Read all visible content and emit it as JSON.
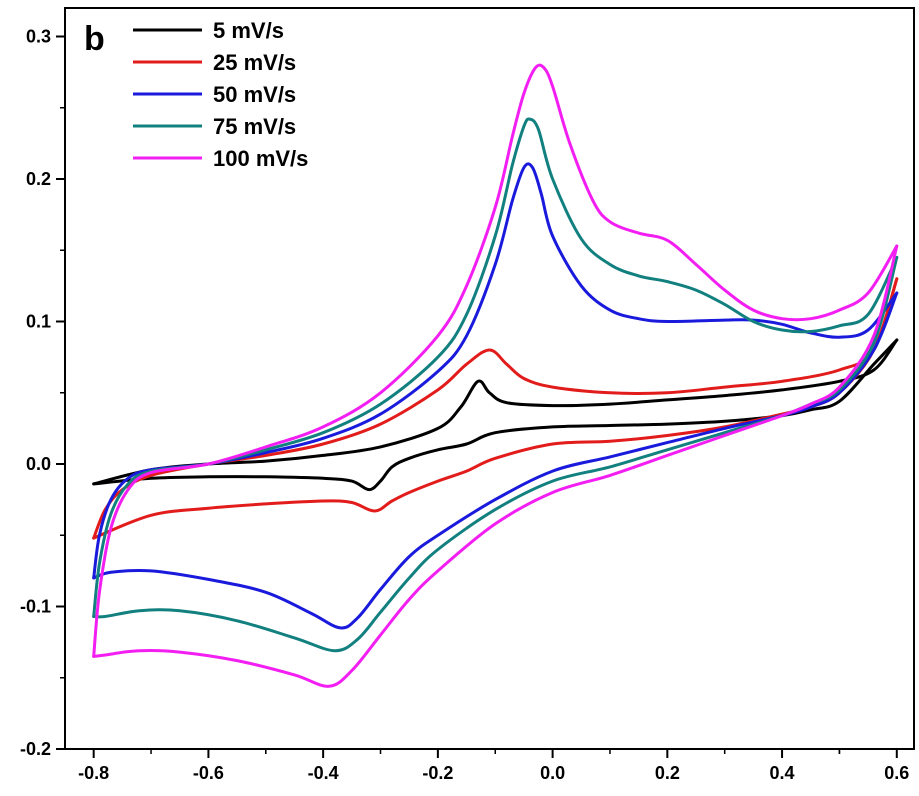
{
  "panel_label": "b",
  "colors": {
    "s5": "#000000",
    "s25": "#e21b1b",
    "s50": "#1a1adc",
    "s75": "#138080",
    "s100": "#f21ef2"
  },
  "chart_data": {
    "type": "line",
    "title": "",
    "xlabel": "",
    "ylabel": "",
    "xlim": [
      -0.85,
      0.63
    ],
    "ylim": [
      -0.2,
      0.32
    ],
    "xticks": [
      -0.8,
      -0.6,
      -0.4,
      -0.2,
      0.0,
      0.2,
      0.4,
      0.6
    ],
    "xtick_labels": [
      "-0.8",
      "-0.6",
      "-0.4",
      "-0.2",
      "0.0",
      "0.2",
      "0.4",
      "0.6"
    ],
    "yticks": [
      -0.2,
      -0.1,
      0.0,
      0.1,
      0.2,
      0.3
    ],
    "ytick_labels": [
      "-0.2",
      "-0.1",
      "0.0",
      "0.1",
      "0.2",
      "0.3"
    ],
    "legend_position": "top-left",
    "grid": false,
    "series": [
      {
        "name": "5 mV/s",
        "color_key": "s5",
        "anodic": [
          [
            -0.8,
            -0.014
          ],
          [
            -0.7,
            -0.004
          ],
          [
            -0.6,
            0.0
          ],
          [
            -0.5,
            0.002
          ],
          [
            -0.4,
            0.006
          ],
          [
            -0.3,
            0.012
          ],
          [
            -0.2,
            0.025
          ],
          [
            -0.16,
            0.04
          ],
          [
            -0.13,
            0.058
          ],
          [
            -0.11,
            0.05
          ],
          [
            -0.08,
            0.043
          ],
          [
            0.0,
            0.041
          ],
          [
            0.1,
            0.042
          ],
          [
            0.2,
            0.045
          ],
          [
            0.3,
            0.048
          ],
          [
            0.4,
            0.052
          ],
          [
            0.5,
            0.058
          ],
          [
            0.56,
            0.066
          ],
          [
            0.6,
            0.087
          ]
        ],
        "cathodic": [
          [
            0.6,
            0.087
          ],
          [
            0.56,
            0.07
          ],
          [
            0.5,
            0.044
          ],
          [
            0.45,
            0.038
          ],
          [
            0.4,
            0.034
          ],
          [
            0.3,
            0.03
          ],
          [
            0.2,
            0.028
          ],
          [
            0.1,
            0.027
          ],
          [
            0.0,
            0.026
          ],
          [
            -0.1,
            0.022
          ],
          [
            -0.15,
            0.014
          ],
          [
            -0.2,
            0.01
          ],
          [
            -0.25,
            0.004
          ],
          [
            -0.28,
            -0.002
          ],
          [
            -0.3,
            -0.012
          ],
          [
            -0.32,
            -0.018
          ],
          [
            -0.35,
            -0.012
          ],
          [
            -0.4,
            -0.01
          ],
          [
            -0.5,
            -0.009
          ],
          [
            -0.6,
            -0.009
          ],
          [
            -0.7,
            -0.01
          ],
          [
            -0.8,
            -0.014
          ]
        ]
      },
      {
        "name": "25 mV/s",
        "color_key": "s25",
        "anodic": [
          [
            -0.8,
            -0.052
          ],
          [
            -0.78,
            -0.032
          ],
          [
            -0.75,
            -0.018
          ],
          [
            -0.7,
            -0.008
          ],
          [
            -0.6,
            0.0
          ],
          [
            -0.5,
            0.006
          ],
          [
            -0.4,
            0.014
          ],
          [
            -0.3,
            0.028
          ],
          [
            -0.2,
            0.052
          ],
          [
            -0.15,
            0.07
          ],
          [
            -0.11,
            0.08
          ],
          [
            -0.08,
            0.07
          ],
          [
            -0.05,
            0.06
          ],
          [
            0.0,
            0.054
          ],
          [
            0.1,
            0.05
          ],
          [
            0.2,
            0.05
          ],
          [
            0.3,
            0.054
          ],
          [
            0.4,
            0.058
          ],
          [
            0.5,
            0.066
          ],
          [
            0.56,
            0.08
          ],
          [
            0.6,
            0.13
          ]
        ],
        "cathodic": [
          [
            0.6,
            0.13
          ],
          [
            0.56,
            0.08
          ],
          [
            0.5,
            0.05
          ],
          [
            0.45,
            0.04
          ],
          [
            0.4,
            0.035
          ],
          [
            0.3,
            0.026
          ],
          [
            0.2,
            0.02
          ],
          [
            0.1,
            0.016
          ],
          [
            0.0,
            0.014
          ],
          [
            -0.1,
            0.004
          ],
          [
            -0.15,
            -0.005
          ],
          [
            -0.2,
            -0.012
          ],
          [
            -0.25,
            -0.02
          ],
          [
            -0.28,
            -0.026
          ],
          [
            -0.31,
            -0.033
          ],
          [
            -0.35,
            -0.027
          ],
          [
            -0.4,
            -0.026
          ],
          [
            -0.5,
            -0.028
          ],
          [
            -0.6,
            -0.031
          ],
          [
            -0.7,
            -0.036
          ],
          [
            -0.8,
            -0.052
          ]
        ]
      },
      {
        "name": "50 mV/s",
        "color_key": "s50",
        "anodic": [
          [
            -0.8,
            -0.08
          ],
          [
            -0.79,
            -0.05
          ],
          [
            -0.77,
            -0.025
          ],
          [
            -0.74,
            -0.01
          ],
          [
            -0.7,
            -0.004
          ],
          [
            -0.6,
            0.0
          ],
          [
            -0.5,
            0.008
          ],
          [
            -0.4,
            0.018
          ],
          [
            -0.3,
            0.035
          ],
          [
            -0.2,
            0.065
          ],
          [
            -0.15,
            0.09
          ],
          [
            -0.1,
            0.14
          ],
          [
            -0.07,
            0.185
          ],
          [
            -0.05,
            0.208
          ],
          [
            -0.035,
            0.208
          ],
          [
            -0.02,
            0.19
          ],
          [
            0.0,
            0.16
          ],
          [
            0.05,
            0.125
          ],
          [
            0.1,
            0.108
          ],
          [
            0.15,
            0.102
          ],
          [
            0.2,
            0.1
          ],
          [
            0.3,
            0.101
          ],
          [
            0.35,
            0.101
          ],
          [
            0.4,
            0.098
          ],
          [
            0.45,
            0.092
          ],
          [
            0.5,
            0.089
          ],
          [
            0.55,
            0.094
          ],
          [
            0.6,
            0.12
          ]
        ],
        "cathodic": [
          [
            0.6,
            0.12
          ],
          [
            0.56,
            0.08
          ],
          [
            0.5,
            0.05
          ],
          [
            0.45,
            0.04
          ],
          [
            0.4,
            0.034
          ],
          [
            0.3,
            0.025
          ],
          [
            0.2,
            0.015
          ],
          [
            0.1,
            0.005
          ],
          [
            0.0,
            -0.005
          ],
          [
            -0.1,
            -0.025
          ],
          [
            -0.2,
            -0.05
          ],
          [
            -0.25,
            -0.065
          ],
          [
            -0.3,
            -0.088
          ],
          [
            -0.34,
            -0.108
          ],
          [
            -0.37,
            -0.115
          ],
          [
            -0.42,
            -0.105
          ],
          [
            -0.5,
            -0.09
          ],
          [
            -0.6,
            -0.081
          ],
          [
            -0.7,
            -0.075
          ],
          [
            -0.77,
            -0.076
          ],
          [
            -0.8,
            -0.08
          ]
        ]
      },
      {
        "name": "75 mV/s",
        "color_key": "s75",
        "anodic": [
          [
            -0.8,
            -0.107
          ],
          [
            -0.79,
            -0.07
          ],
          [
            -0.77,
            -0.035
          ],
          [
            -0.74,
            -0.014
          ],
          [
            -0.7,
            -0.005
          ],
          [
            -0.6,
            0.0
          ],
          [
            -0.5,
            0.01
          ],
          [
            -0.4,
            0.022
          ],
          [
            -0.3,
            0.042
          ],
          [
            -0.2,
            0.075
          ],
          [
            -0.15,
            0.105
          ],
          [
            -0.1,
            0.16
          ],
          [
            -0.07,
            0.21
          ],
          [
            -0.05,
            0.237
          ],
          [
            -0.04,
            0.242
          ],
          [
            -0.025,
            0.235
          ],
          [
            0.0,
            0.2
          ],
          [
            0.05,
            0.158
          ],
          [
            0.1,
            0.14
          ],
          [
            0.15,
            0.132
          ],
          [
            0.2,
            0.128
          ],
          [
            0.25,
            0.122
          ],
          [
            0.3,
            0.112
          ],
          [
            0.35,
            0.1
          ],
          [
            0.4,
            0.094
          ],
          [
            0.45,
            0.093
          ],
          [
            0.5,
            0.097
          ],
          [
            0.55,
            0.105
          ],
          [
            0.6,
            0.145
          ]
        ],
        "cathodic": [
          [
            0.6,
            0.145
          ],
          [
            0.56,
            0.085
          ],
          [
            0.5,
            0.052
          ],
          [
            0.45,
            0.042
          ],
          [
            0.4,
            0.034
          ],
          [
            0.3,
            0.022
          ],
          [
            0.2,
            0.01
          ],
          [
            0.1,
            -0.002
          ],
          [
            0.0,
            -0.012
          ],
          [
            -0.1,
            -0.032
          ],
          [
            -0.2,
            -0.06
          ],
          [
            -0.25,
            -0.08
          ],
          [
            -0.3,
            -0.104
          ],
          [
            -0.34,
            -0.123
          ],
          [
            -0.38,
            -0.131
          ],
          [
            -0.45,
            -0.122
          ],
          [
            -0.55,
            -0.11
          ],
          [
            -0.65,
            -0.103
          ],
          [
            -0.72,
            -0.103
          ],
          [
            -0.78,
            -0.107
          ],
          [
            -0.8,
            -0.107
          ]
        ]
      },
      {
        "name": "100 mV/s",
        "color_key": "s100",
        "anodic": [
          [
            -0.8,
            -0.135
          ],
          [
            -0.79,
            -0.09
          ],
          [
            -0.77,
            -0.045
          ],
          [
            -0.74,
            -0.018
          ],
          [
            -0.7,
            -0.006
          ],
          [
            -0.6,
            0.0
          ],
          [
            -0.5,
            0.012
          ],
          [
            -0.4,
            0.026
          ],
          [
            -0.3,
            0.05
          ],
          [
            -0.2,
            0.09
          ],
          [
            -0.15,
            0.125
          ],
          [
            -0.1,
            0.18
          ],
          [
            -0.07,
            0.23
          ],
          [
            -0.05,
            0.26
          ],
          [
            -0.03,
            0.278
          ],
          [
            -0.015,
            0.278
          ],
          [
            0.0,
            0.265
          ],
          [
            0.03,
            0.225
          ],
          [
            0.07,
            0.185
          ],
          [
            0.1,
            0.17
          ],
          [
            0.15,
            0.162
          ],
          [
            0.2,
            0.157
          ],
          [
            0.25,
            0.14
          ],
          [
            0.3,
            0.122
          ],
          [
            0.35,
            0.108
          ],
          [
            0.4,
            0.102
          ],
          [
            0.45,
            0.102
          ],
          [
            0.5,
            0.108
          ],
          [
            0.55,
            0.12
          ],
          [
            0.6,
            0.153
          ]
        ],
        "cathodic": [
          [
            0.6,
            0.153
          ],
          [
            0.56,
            0.09
          ],
          [
            0.5,
            0.054
          ],
          [
            0.45,
            0.042
          ],
          [
            0.4,
            0.034
          ],
          [
            0.3,
            0.02
          ],
          [
            0.2,
            0.006
          ],
          [
            0.1,
            -0.008
          ],
          [
            0.0,
            -0.02
          ],
          [
            -0.1,
            -0.042
          ],
          [
            -0.2,
            -0.075
          ],
          [
            -0.25,
            -0.095
          ],
          [
            -0.3,
            -0.12
          ],
          [
            -0.35,
            -0.145
          ],
          [
            -0.39,
            -0.156
          ],
          [
            -0.45,
            -0.148
          ],
          [
            -0.55,
            -0.138
          ],
          [
            -0.65,
            -0.132
          ],
          [
            -0.72,
            -0.131
          ],
          [
            -0.78,
            -0.134
          ],
          [
            -0.8,
            -0.135
          ]
        ]
      }
    ]
  }
}
